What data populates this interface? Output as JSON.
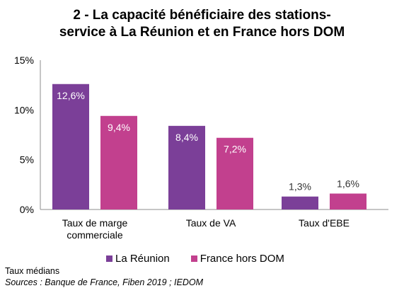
{
  "chart_data": {
    "type": "bar",
    "title_line1": "2 - La capacité bénéficiaire des stations-",
    "title_line2": "service à La Réunion et en France hors DOM",
    "categories": [
      [
        "Taux de marge",
        "commerciale"
      ],
      [
        "Taux de VA"
      ],
      [
        "Taux d'EBE"
      ]
    ],
    "series": [
      {
        "name": "La Réunion",
        "values": [
          12.6,
          8.4,
          1.3
        ],
        "labels": [
          "12,6%",
          "8,4%",
          "1,3%"
        ],
        "color": "#7B3F98"
      },
      {
        "name": "France hors DOM",
        "values": [
          9.4,
          7.2,
          1.6
        ],
        "labels": [
          "9,4%",
          "7,2%",
          "1,6%"
        ],
        "color": "#C2408E"
      }
    ],
    "ylim": [
      0,
      15
    ],
    "yticks": [
      0,
      5,
      10,
      15
    ],
    "ytick_labels": [
      "0%",
      "5%",
      "10%",
      "15%"
    ],
    "grid": false,
    "legend_position": "bottom"
  },
  "notes": {
    "medians": "Taux médians",
    "sources": "Sources : Banque de France, Fiben 2019 ; IEDOM"
  }
}
